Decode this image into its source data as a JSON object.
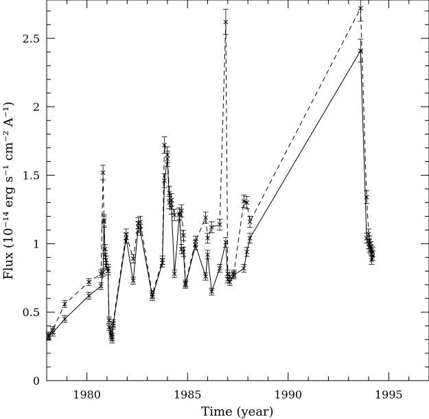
{
  "chart_data": {
    "type": "line",
    "xlabel": "Time (year)",
    "ylabel": "Flux (10⁻¹⁴ erg s⁻¹ cm⁻² A⁻¹)",
    "xlim": [
      1978.0,
      1997.0
    ],
    "ylim": [
      0.0,
      2.78
    ],
    "x_ticks": [
      "1980",
      "1985",
      "1990",
      "1995"
    ],
    "y_ticks": [
      "0",
      "0.5",
      "1",
      "1.5",
      "2",
      "2.5"
    ],
    "grid": false,
    "legend": "none",
    "series": [
      {
        "style": "dashed",
        "x": [
          1978.1,
          1978.3,
          1978.9,
          1980.1,
          1980.7,
          1980.8,
          1980.85,
          1980.9,
          1980.95,
          1981.05,
          1981.1,
          1981.2,
          1981.25,
          1981.3,
          1981.95,
          1982.3,
          1982.55,
          1982.65,
          1983.25,
          1983.75,
          1983.85,
          1984.0,
          1984.1,
          1984.2,
          1984.35,
          1984.6,
          1984.7,
          1984.8,
          1984.9,
          1985.4,
          1985.9,
          1986.0,
          1986.2,
          1986.6,
          1986.9,
          1987.0,
          1987.1,
          1987.3,
          1987.8,
          1987.95,
          1988.1,
          1993.6,
          1993.9,
          1994.0,
          1994.05,
          1994.1,
          1994.15,
          1994.2
        ],
        "y": [
          0.33,
          0.37,
          0.56,
          0.72,
          0.78,
          1.52,
          1.17,
          0.96,
          0.88,
          0.82,
          0.44,
          0.36,
          0.32,
          0.42,
          1.07,
          0.89,
          1.15,
          1.16,
          0.63,
          0.88,
          1.72,
          1.65,
          1.37,
          1.32,
          1.21,
          1.22,
          1.24,
          1.06,
          0.71,
          1.02,
          1.19,
          1.04,
          1.12,
          1.14,
          2.62,
          0.78,
          0.76,
          0.78,
          1.31,
          1.3,
          1.16,
          2.72,
          1.34,
          1.07,
          1.02,
          0.98,
          0.95,
          0.94
        ]
      },
      {
        "style": "solid",
        "x": [
          1978.1,
          1978.3,
          1978.9,
          1980.1,
          1980.7,
          1980.8,
          1980.85,
          1980.9,
          1980.95,
          1981.05,
          1981.1,
          1981.2,
          1981.25,
          1981.3,
          1981.95,
          1982.3,
          1982.55,
          1982.65,
          1983.25,
          1983.75,
          1983.85,
          1984.0,
          1984.1,
          1984.2,
          1984.35,
          1984.6,
          1984.7,
          1984.8,
          1984.9,
          1985.4,
          1985.9,
          1986.0,
          1986.2,
          1986.6,
          1986.9,
          1987.0,
          1987.1,
          1987.3,
          1987.8,
          1987.95,
          1988.1,
          1993.6,
          1993.9,
          1994.0,
          1994.05,
          1994.1,
          1994.15,
          1994.2
        ],
        "y": [
          0.32,
          0.35,
          0.45,
          0.62,
          0.69,
          0.79,
          1.16,
          0.92,
          0.84,
          0.8,
          0.39,
          0.33,
          0.3,
          0.4,
          1.04,
          0.73,
          1.12,
          1.1,
          0.61,
          0.86,
          1.46,
          1.62,
          1.3,
          1.26,
          0.78,
          1.21,
          0.96,
          0.94,
          0.7,
          0.99,
          0.76,
          0.92,
          0.65,
          0.82,
          1.01,
          0.74,
          0.72,
          0.77,
          0.82,
          0.94,
          1.04,
          2.41,
          1.04,
          1.0,
          0.97,
          0.96,
          0.88,
          0.91
        ]
      }
    ]
  }
}
